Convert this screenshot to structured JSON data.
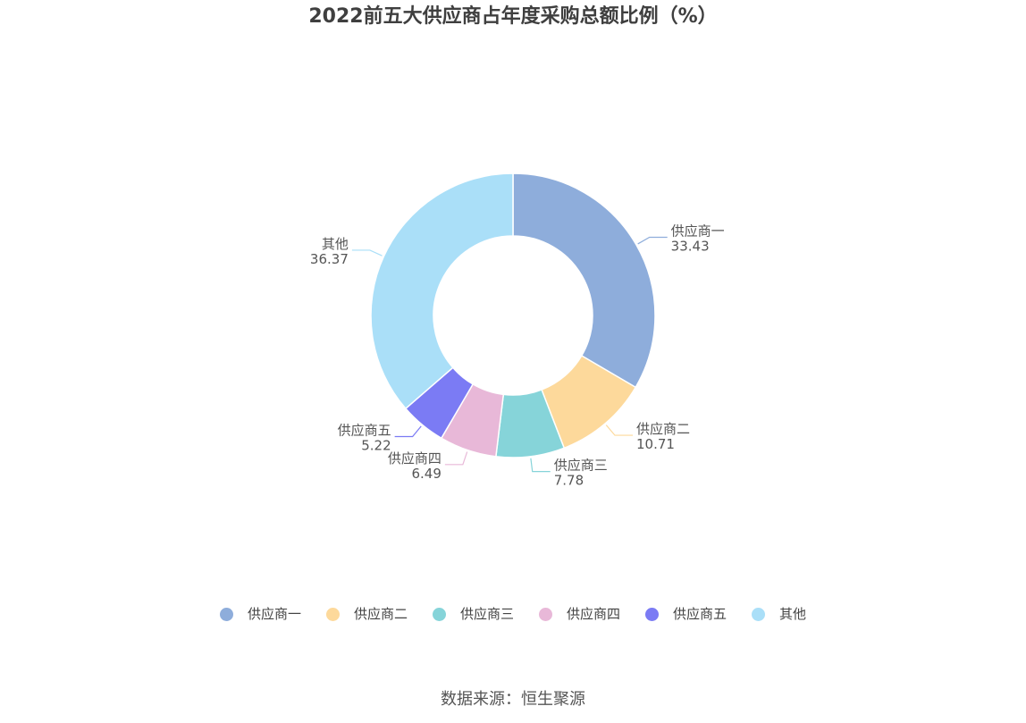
{
  "source_text": "数据来源：恒生聚源",
  "chart_data": {
    "type": "pie",
    "style": "donut",
    "title": "2022前五大供应商占年度采购总额比例（%）",
    "categories": [
      "供应商一",
      "供应商二",
      "供应商三",
      "供应商四",
      "供应商五",
      "其他"
    ],
    "values": [
      33.43,
      10.71,
      7.78,
      6.49,
      5.22,
      36.37
    ],
    "value_labels": [
      "33.43",
      "10.71",
      "7.78",
      "6.49",
      "5.22",
      "36.37"
    ],
    "colors": [
      "#8eaddb",
      "#fdd99b",
      "#86d4d9",
      "#e8b8d8",
      "#7b7bf4",
      "#aadff8"
    ],
    "legend_position": "bottom"
  }
}
